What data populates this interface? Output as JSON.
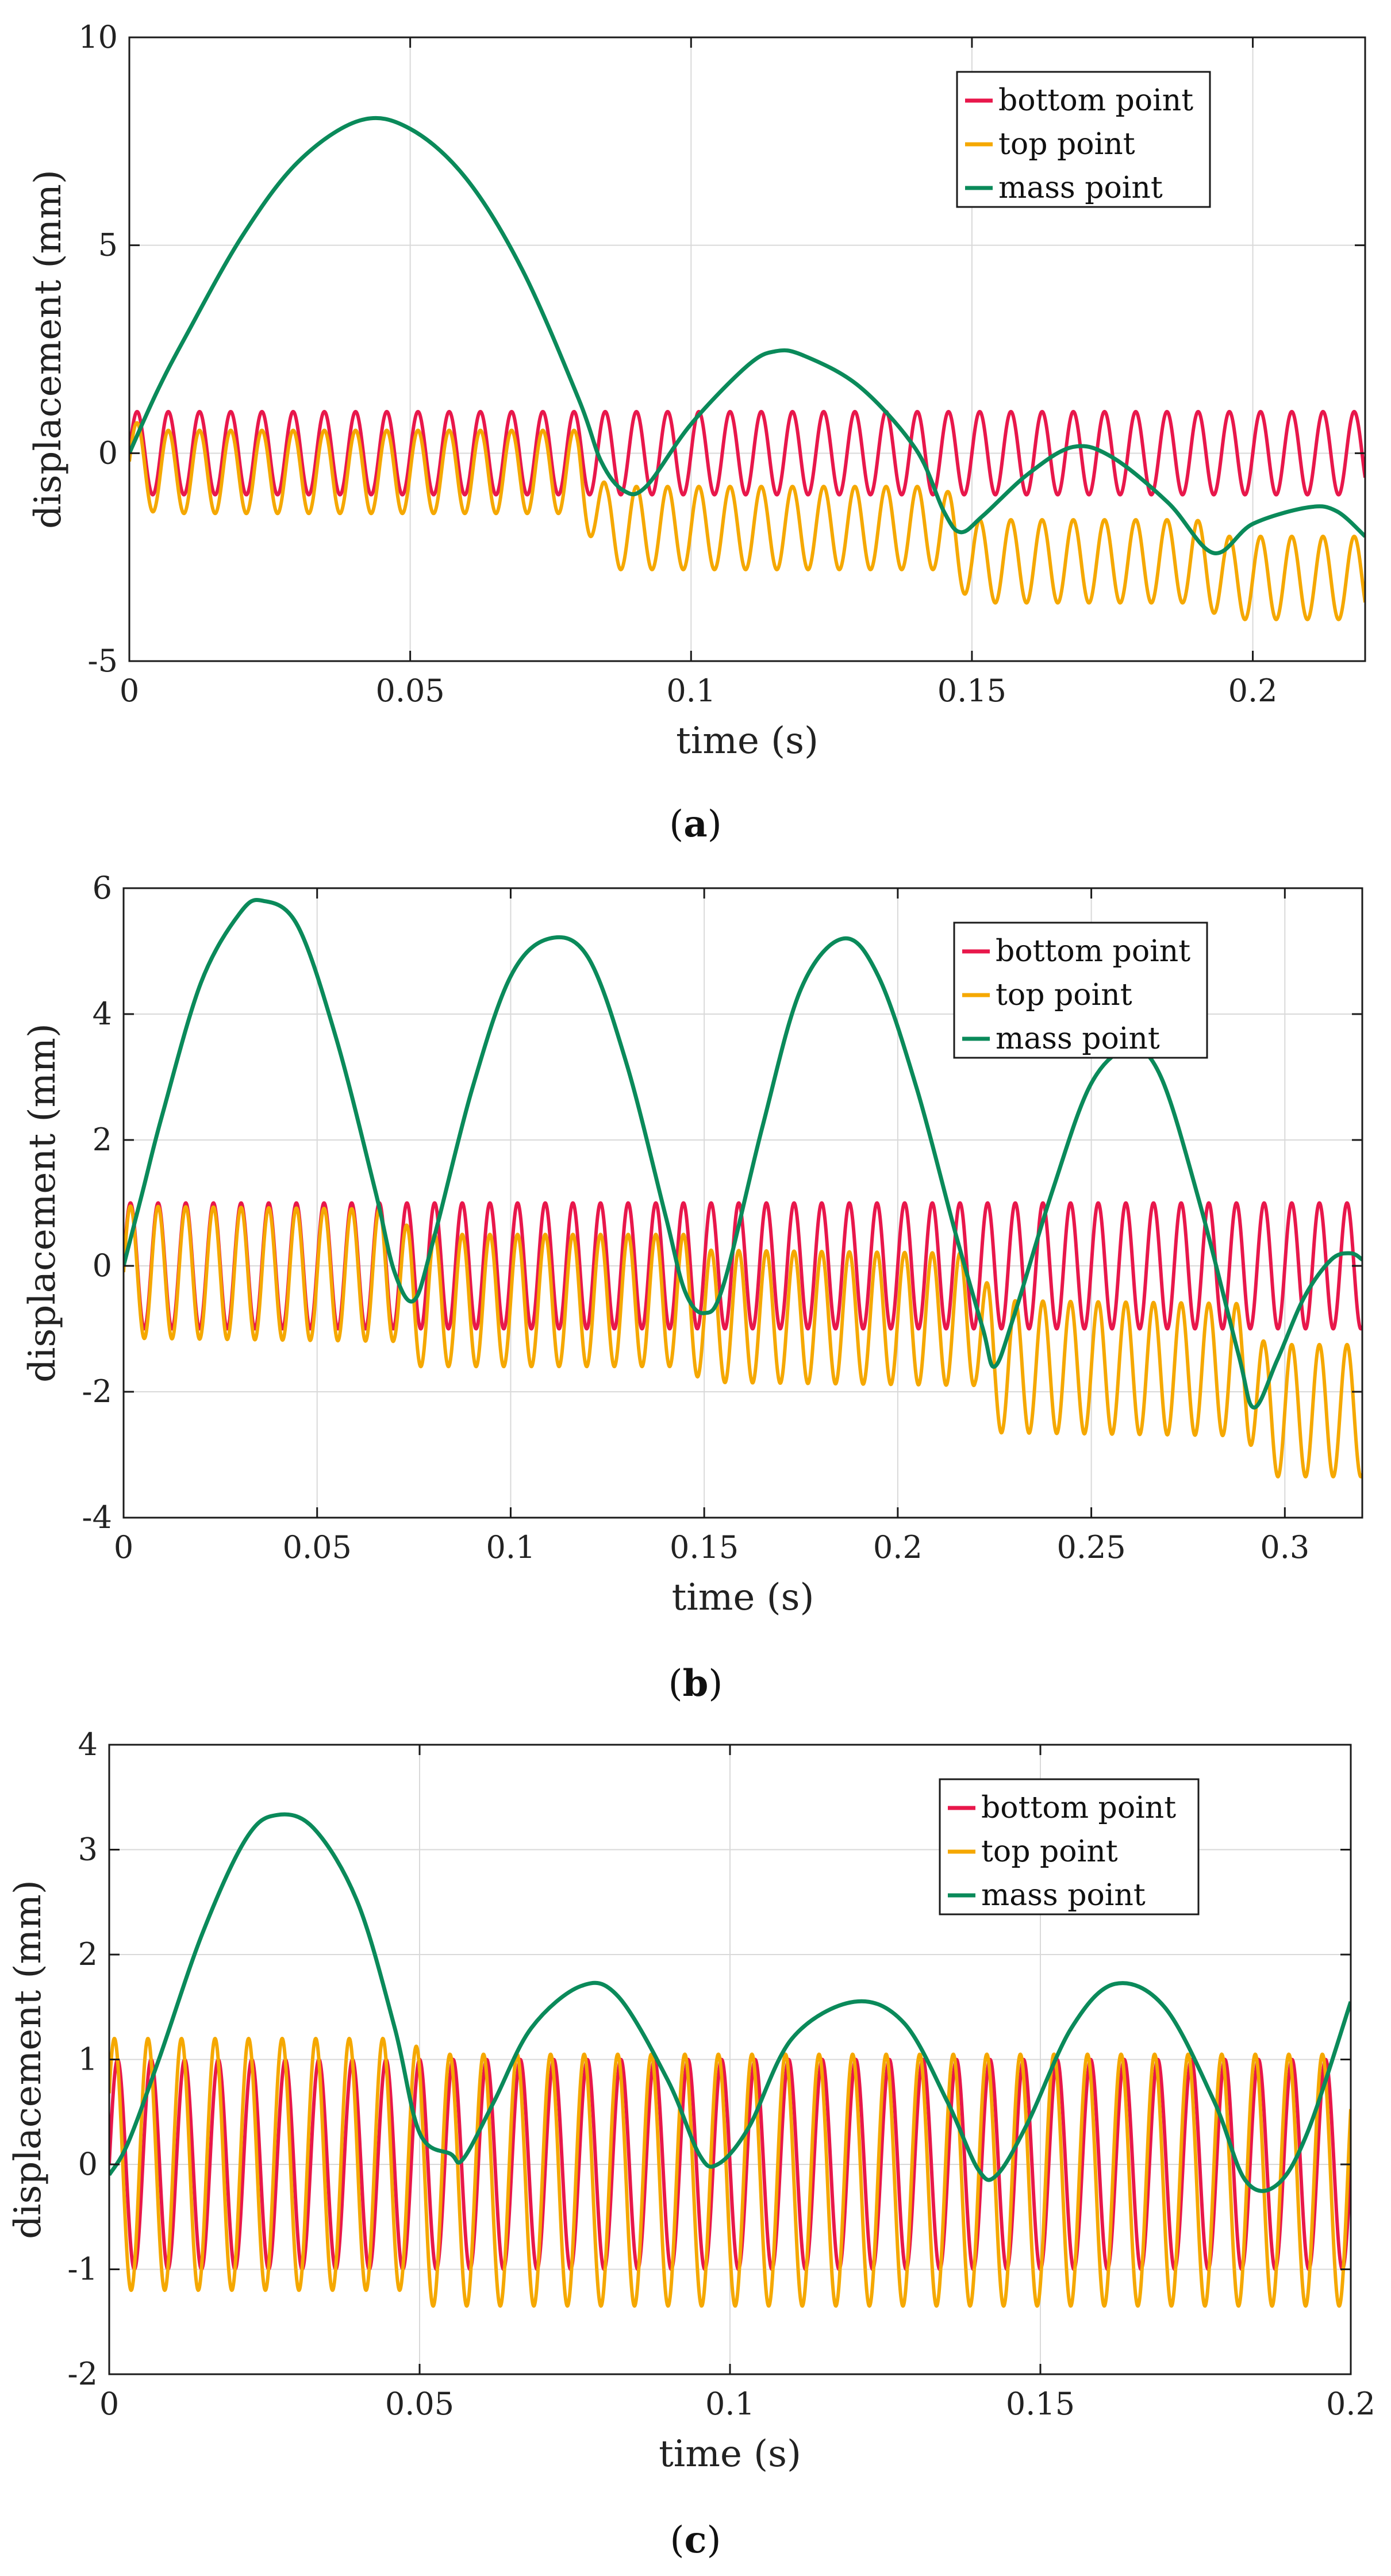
{
  "colors": {
    "bottom": "#e8174b",
    "top": "#f5a800",
    "mass": "#0a8a5a",
    "grid": "#d9d9d9",
    "axis": "#1a1a1a",
    "background": "#ffffff"
  },
  "chart_data": [
    {
      "type": "line",
      "caption": {
        "open": "(",
        "letter": "a",
        "close": ")"
      },
      "xlabel": "time (s)",
      "ylabel": "displacement (mm)",
      "xlim": [
        0,
        0.22
      ],
      "ylim": [
        -5,
        10
      ],
      "xticks": [
        0,
        0.05,
        0.1,
        0.15,
        0.2
      ],
      "yticks": [
        -5,
        0,
        5,
        10
      ],
      "xtick_labels": [
        "0",
        "0.05",
        "0.1",
        "0.15",
        "0.2"
      ],
      "ytick_labels": [
        "-5",
        "0",
        "5",
        "10"
      ],
      "grid": true,
      "legend_position": "top-right",
      "series": [
        {
          "name": "bottom point",
          "color_key": "bottom",
          "model": "sine",
          "amplitude": 1.0,
          "frequency_hz": 180,
          "offset_points": [
            [
              0,
              0
            ],
            [
              0.22,
              0
            ]
          ]
        },
        {
          "name": "top point",
          "color_key": "top",
          "model": "sine",
          "amplitude": 1.0,
          "frequency_hz": 180,
          "offset_points": [
            [
              0,
              -0.2
            ],
            [
              0.005,
              -0.45
            ],
            [
              0.08,
              -0.45
            ],
            [
              0.085,
              -1.8
            ],
            [
              0.145,
              -1.8
            ],
            [
              0.15,
              -2.6
            ],
            [
              0.19,
              -2.6
            ],
            [
              0.195,
              -3.0
            ],
            [
              0.22,
              -3.0
            ]
          ]
        },
        {
          "name": "mass point",
          "color_key": "mass",
          "points": [
            [
              0,
              0
            ],
            [
              0.005,
              1.5
            ],
            [
              0.01,
              2.8
            ],
            [
              0.02,
              5.2
            ],
            [
              0.03,
              7.0
            ],
            [
              0.041,
              8.0
            ],
            [
              0.05,
              7.8
            ],
            [
              0.06,
              6.6
            ],
            [
              0.07,
              4.4
            ],
            [
              0.08,
              1.3
            ],
            [
              0.084,
              -0.2
            ],
            [
              0.088,
              -0.9
            ],
            [
              0.092,
              -0.8
            ],
            [
              0.1,
              0.7
            ],
            [
              0.11,
              2.1
            ],
            [
              0.115,
              2.45
            ],
            [
              0.12,
              2.35
            ],
            [
              0.13,
              1.6
            ],
            [
              0.14,
              0.1
            ],
            [
              0.145,
              -1.4
            ],
            [
              0.148,
              -1.9
            ],
            [
              0.152,
              -1.5
            ],
            [
              0.16,
              -0.5
            ],
            [
              0.168,
              0.15
            ],
            [
              0.175,
              -0.1
            ],
            [
              0.185,
              -1.2
            ],
            [
              0.193,
              -2.4
            ],
            [
              0.2,
              -1.7
            ],
            [
              0.21,
              -1.3
            ],
            [
              0.215,
              -1.4
            ],
            [
              0.22,
              -2.0
            ]
          ]
        }
      ]
    },
    {
      "type": "line",
      "caption": {
        "open": "(",
        "letter": "b",
        "close": ")"
      },
      "xlabel": "time (s)",
      "ylabel": "displacement (mm)",
      "xlim": [
        0,
        0.32
      ],
      "ylim": [
        -4,
        6
      ],
      "xticks": [
        0,
        0.05,
        0.1,
        0.15,
        0.2,
        0.25,
        0.3
      ],
      "yticks": [
        -4,
        -2,
        0,
        2,
        4,
        6
      ],
      "xtick_labels": [
        "0",
        "0.05",
        "0.1",
        "0.15",
        "0.2",
        "0.25",
        "0.3"
      ],
      "ytick_labels": [
        "-4",
        "-2",
        "0",
        "2",
        "4",
        "6"
      ],
      "grid": true,
      "legend_position": "top-right",
      "series": [
        {
          "name": "bottom point",
          "color_key": "bottom",
          "model": "sine",
          "amplitude": 1.0,
          "frequency_hz": 140,
          "offset_points": [
            [
              0,
              0
            ],
            [
              0.32,
              0
            ]
          ]
        },
        {
          "name": "top point",
          "color_key": "top",
          "model": "sine",
          "amplitude": 1.05,
          "frequency_hz": 140,
          "offset_points": [
            [
              0,
              -0.1
            ],
            [
              0.07,
              -0.15
            ],
            [
              0.075,
              -0.55
            ],
            [
              0.145,
              -0.55
            ],
            [
              0.15,
              -0.8
            ],
            [
              0.22,
              -0.85
            ],
            [
              0.225,
              -1.6
            ],
            [
              0.29,
              -1.65
            ],
            [
              0.295,
              -2.3
            ],
            [
              0.32,
              -2.3
            ]
          ]
        },
        {
          "name": "mass point",
          "color_key": "mass",
          "points": [
            [
              0,
              0
            ],
            [
              0.005,
              1.2
            ],
            [
              0.01,
              2.4
            ],
            [
              0.02,
              4.5
            ],
            [
              0.03,
              5.6
            ],
            [
              0.036,
              5.8
            ],
            [
              0.045,
              5.4
            ],
            [
              0.055,
              3.6
            ],
            [
              0.065,
              1.2
            ],
            [
              0.07,
              -0.1
            ],
            [
              0.075,
              -0.55
            ],
            [
              0.08,
              0.4
            ],
            [
              0.09,
              2.8
            ],
            [
              0.1,
              4.6
            ],
            [
              0.11,
              5.2
            ],
            [
              0.12,
              4.9
            ],
            [
              0.13,
              3.2
            ],
            [
              0.14,
              0.8
            ],
            [
              0.145,
              -0.4
            ],
            [
              0.15,
              -0.75
            ],
            [
              0.155,
              -0.3
            ],
            [
              0.165,
              2.2
            ],
            [
              0.175,
              4.4
            ],
            [
              0.186,
              5.2
            ],
            [
              0.195,
              4.6
            ],
            [
              0.205,
              2.8
            ],
            [
              0.215,
              0.5
            ],
            [
              0.222,
              -1.0
            ],
            [
              0.225,
              -1.6
            ],
            [
              0.23,
              -0.8
            ],
            [
              0.24,
              1.2
            ],
            [
              0.25,
              2.9
            ],
            [
              0.26,
              3.45
            ],
            [
              0.268,
              3.0
            ],
            [
              0.278,
              1.0
            ],
            [
              0.288,
              -1.4
            ],
            [
              0.292,
              -2.25
            ],
            [
              0.298,
              -1.5
            ],
            [
              0.305,
              -0.5
            ],
            [
              0.312,
              0.1
            ],
            [
              0.317,
              0.2
            ],
            [
              0.32,
              0.1
            ]
          ]
        }
      ]
    },
    {
      "type": "line",
      "caption": {
        "open": "(",
        "letter": "c",
        "close": ")"
      },
      "xlabel": "time (s)",
      "ylabel": "displacement (mm)",
      "xlim": [
        0,
        0.2
      ],
      "ylim": [
        -2,
        4
      ],
      "xticks": [
        0,
        0.05,
        0.1,
        0.15,
        0.2
      ],
      "yticks": [
        -2,
        -1,
        0,
        1,
        2,
        3,
        4
      ],
      "xtick_labels": [
        "0",
        "0.05",
        "0.1",
        "0.15",
        "0.2"
      ],
      "ytick_labels": [
        "-2",
        "-1",
        "0",
        "1",
        "2",
        "3",
        "4"
      ],
      "grid": true,
      "legend_position": "top-right",
      "series": [
        {
          "name": "bottom point",
          "color_key": "bottom",
          "model": "sine",
          "amplitude": 1.0,
          "frequency_hz": 185,
          "offset_points": [
            [
              0,
              0
            ],
            [
              0.2,
              0
            ]
          ]
        },
        {
          "name": "top point",
          "color_key": "top",
          "model": "sine",
          "amplitude": 1.2,
          "frequency_hz": 185,
          "phase": 0.6,
          "offset_points": [
            [
              0,
              0
            ],
            [
              0.047,
              0
            ],
            [
              0.052,
              -0.15
            ],
            [
              0.2,
              -0.15
            ]
          ]
        },
        {
          "name": "mass point",
          "color_key": "mass",
          "points": [
            [
              0,
              -0.1
            ],
            [
              0.003,
              0.2
            ],
            [
              0.008,
              1.0
            ],
            [
              0.015,
              2.2
            ],
            [
              0.022,
              3.1
            ],
            [
              0.027,
              3.33
            ],
            [
              0.033,
              3.2
            ],
            [
              0.04,
              2.5
            ],
            [
              0.046,
              1.3
            ],
            [
              0.05,
              0.3
            ],
            [
              0.055,
              0.1
            ],
            [
              0.057,
              0.05
            ],
            [
              0.062,
              0.6
            ],
            [
              0.068,
              1.3
            ],
            [
              0.076,
              1.7
            ],
            [
              0.082,
              1.6
            ],
            [
              0.09,
              0.8
            ],
            [
              0.095,
              0.1
            ],
            [
              0.098,
              0.0
            ],
            [
              0.103,
              0.35
            ],
            [
              0.11,
              1.2
            ],
            [
              0.12,
              1.55
            ],
            [
              0.128,
              1.35
            ],
            [
              0.135,
              0.6
            ],
            [
              0.14,
              -0.05
            ],
            [
              0.143,
              -0.1
            ],
            [
              0.148,
              0.4
            ],
            [
              0.155,
              1.3
            ],
            [
              0.162,
              1.72
            ],
            [
              0.17,
              1.5
            ],
            [
              0.178,
              0.6
            ],
            [
              0.183,
              -0.15
            ],
            [
              0.188,
              -0.2
            ],
            [
              0.193,
              0.3
            ],
            [
              0.2,
              1.55
            ]
          ]
        }
      ]
    }
  ]
}
